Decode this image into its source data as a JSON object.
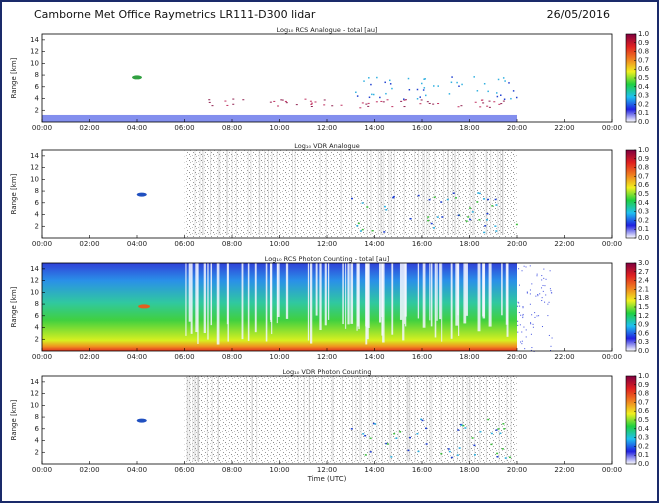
{
  "header": {
    "title": "Camborne Met Office Raymetrics LR111-D300 lidar",
    "date": "26/05/2016"
  },
  "chart_data": [
    {
      "type": "heatmap",
      "title": "Log₁₀ RCS Analogue - total [au]",
      "y_label": "Range [km]",
      "xlim": [
        0,
        24
      ],
      "xticks": [
        {
          "value": 0,
          "label": "00:00"
        },
        {
          "value": 2,
          "label": "02:00"
        },
        {
          "value": 4,
          "label": "04:00"
        },
        {
          "value": 6,
          "label": "06:00"
        },
        {
          "value": 8,
          "label": "08:00"
        },
        {
          "value": 10,
          "label": "10:00"
        },
        {
          "value": 12,
          "label": "12:00"
        },
        {
          "value": 14,
          "label": "14:00"
        },
        {
          "value": 16,
          "label": "16:00"
        },
        {
          "value": 18,
          "label": "18:00"
        },
        {
          "value": 20,
          "label": "20:00"
        },
        {
          "value": 22,
          "label": "22:00"
        },
        {
          "value": 24,
          "label": "00:00"
        }
      ],
      "ylim": [
        0,
        15
      ],
      "yticks": [
        2,
        4,
        6,
        8,
        10,
        12,
        14
      ],
      "clim": [
        0,
        1
      ],
      "cticks": [
        {
          "value": 0,
          "label": "0.0"
        },
        0.1,
        0.2,
        0.3,
        0.4,
        0.5,
        0.6,
        0.7,
        0.8,
        0.9,
        {
          "value": 1,
          "label": "1.0"
        }
      ],
      "colors": [
        "#ffffff",
        "#2020e0",
        "#20c0f0",
        "#20d040",
        "#f0f020",
        "#f08020",
        "#e02020",
        "#800040"
      ]
    },
    {
      "type": "heatmap",
      "title": "Log₁₀ VDR Analogue",
      "y_label": "Range [km]",
      "xlim": [
        0,
        24
      ],
      "xticks": [
        {
          "value": 0,
          "label": "00:00"
        },
        {
          "value": 2,
          "label": "02:00"
        },
        {
          "value": 4,
          "label": "04:00"
        },
        {
          "value": 6,
          "label": "06:00"
        },
        {
          "value": 8,
          "label": "08:00"
        },
        {
          "value": 10,
          "label": "10:00"
        },
        {
          "value": 12,
          "label": "12:00"
        },
        {
          "value": 14,
          "label": "14:00"
        },
        {
          "value": 16,
          "label": "16:00"
        },
        {
          "value": 18,
          "label": "18:00"
        },
        {
          "value": 20,
          "label": "20:00"
        },
        {
          "value": 22,
          "label": "22:00"
        },
        {
          "value": 24,
          "label": "00:00"
        }
      ],
      "ylim": [
        0,
        15
      ],
      "yticks": [
        2,
        4,
        6,
        8,
        10,
        12,
        14
      ],
      "clim": [
        0,
        1
      ],
      "cticks": [
        {
          "value": 0,
          "label": "0.0"
        },
        0.1,
        0.2,
        0.3,
        0.4,
        0.5,
        0.6,
        0.7,
        0.8,
        0.9,
        {
          "value": 1,
          "label": "1.0"
        }
      ],
      "colors": [
        "#ffffff",
        "#2020e0",
        "#20c0f0",
        "#20d040",
        "#f0f020",
        "#f08020",
        "#e02020",
        "#800040"
      ]
    },
    {
      "type": "heatmap",
      "title": "Log₁₀ RCS Photon Counting - total [au]",
      "y_label": "Range [km]",
      "xlim": [
        0,
        24
      ],
      "xticks": [
        {
          "value": 0,
          "label": "00:00"
        },
        {
          "value": 2,
          "label": "02:00"
        },
        {
          "value": 4,
          "label": "04:00"
        },
        {
          "value": 6,
          "label": "06:00"
        },
        {
          "value": 8,
          "label": "08:00"
        },
        {
          "value": 10,
          "label": "10:00"
        },
        {
          "value": 12,
          "label": "12:00"
        },
        {
          "value": 14,
          "label": "14:00"
        },
        {
          "value": 16,
          "label": "16:00"
        },
        {
          "value": 18,
          "label": "18:00"
        },
        {
          "value": 20,
          "label": "20:00"
        },
        {
          "value": 22,
          "label": "22:00"
        },
        {
          "value": 24,
          "label": "00:00"
        }
      ],
      "ylim": [
        0,
        15
      ],
      "yticks": [
        2,
        4,
        6,
        8,
        10,
        12,
        14
      ],
      "clim": [
        0,
        3
      ],
      "cticks": [
        {
          "value": 0,
          "label": "0.0"
        },
        0.3,
        0.6,
        0.9,
        1.2,
        1.5,
        1.8,
        2.1,
        2.4,
        2.7,
        {
          "value": 3,
          "label": "3.0"
        }
      ],
      "colors": [
        "#ffffff",
        "#2020e0",
        "#20c0f0",
        "#20d040",
        "#f0f020",
        "#f08020",
        "#e02020",
        "#800040"
      ]
    },
    {
      "type": "heatmap",
      "title": "Log₁₀ VDR Photon Counting",
      "y_label": "Range [km]",
      "x_label": "Time (UTC)",
      "xlim": [
        0,
        24
      ],
      "xticks": [
        {
          "value": 0,
          "label": "00:00"
        },
        {
          "value": 2,
          "label": "02:00"
        },
        {
          "value": 4,
          "label": "04:00"
        },
        {
          "value": 6,
          "label": "06:00"
        },
        {
          "value": 8,
          "label": "08:00"
        },
        {
          "value": 10,
          "label": "10:00"
        },
        {
          "value": 12,
          "label": "12:00"
        },
        {
          "value": 14,
          "label": "14:00"
        },
        {
          "value": 16,
          "label": "16:00"
        },
        {
          "value": 18,
          "label": "18:00"
        },
        {
          "value": 20,
          "label": "20:00"
        },
        {
          "value": 22,
          "label": "22:00"
        },
        {
          "value": 24,
          "label": "00:00"
        }
      ],
      "ylim": [
        0,
        15
      ],
      "yticks": [
        2,
        4,
        6,
        8,
        10,
        12,
        14
      ],
      "clim": [
        0,
        1
      ],
      "cticks": [
        {
          "value": 0,
          "label": "0.0"
        },
        0.1,
        0.2,
        0.3,
        0.4,
        0.5,
        0.6,
        0.7,
        0.8,
        0.9,
        {
          "value": 1,
          "label": "1.0"
        }
      ],
      "colors": [
        "#ffffff",
        "#2020e0",
        "#20c0f0",
        "#20d040",
        "#f0f020",
        "#f08020",
        "#e02020",
        "#800040"
      ]
    }
  ]
}
